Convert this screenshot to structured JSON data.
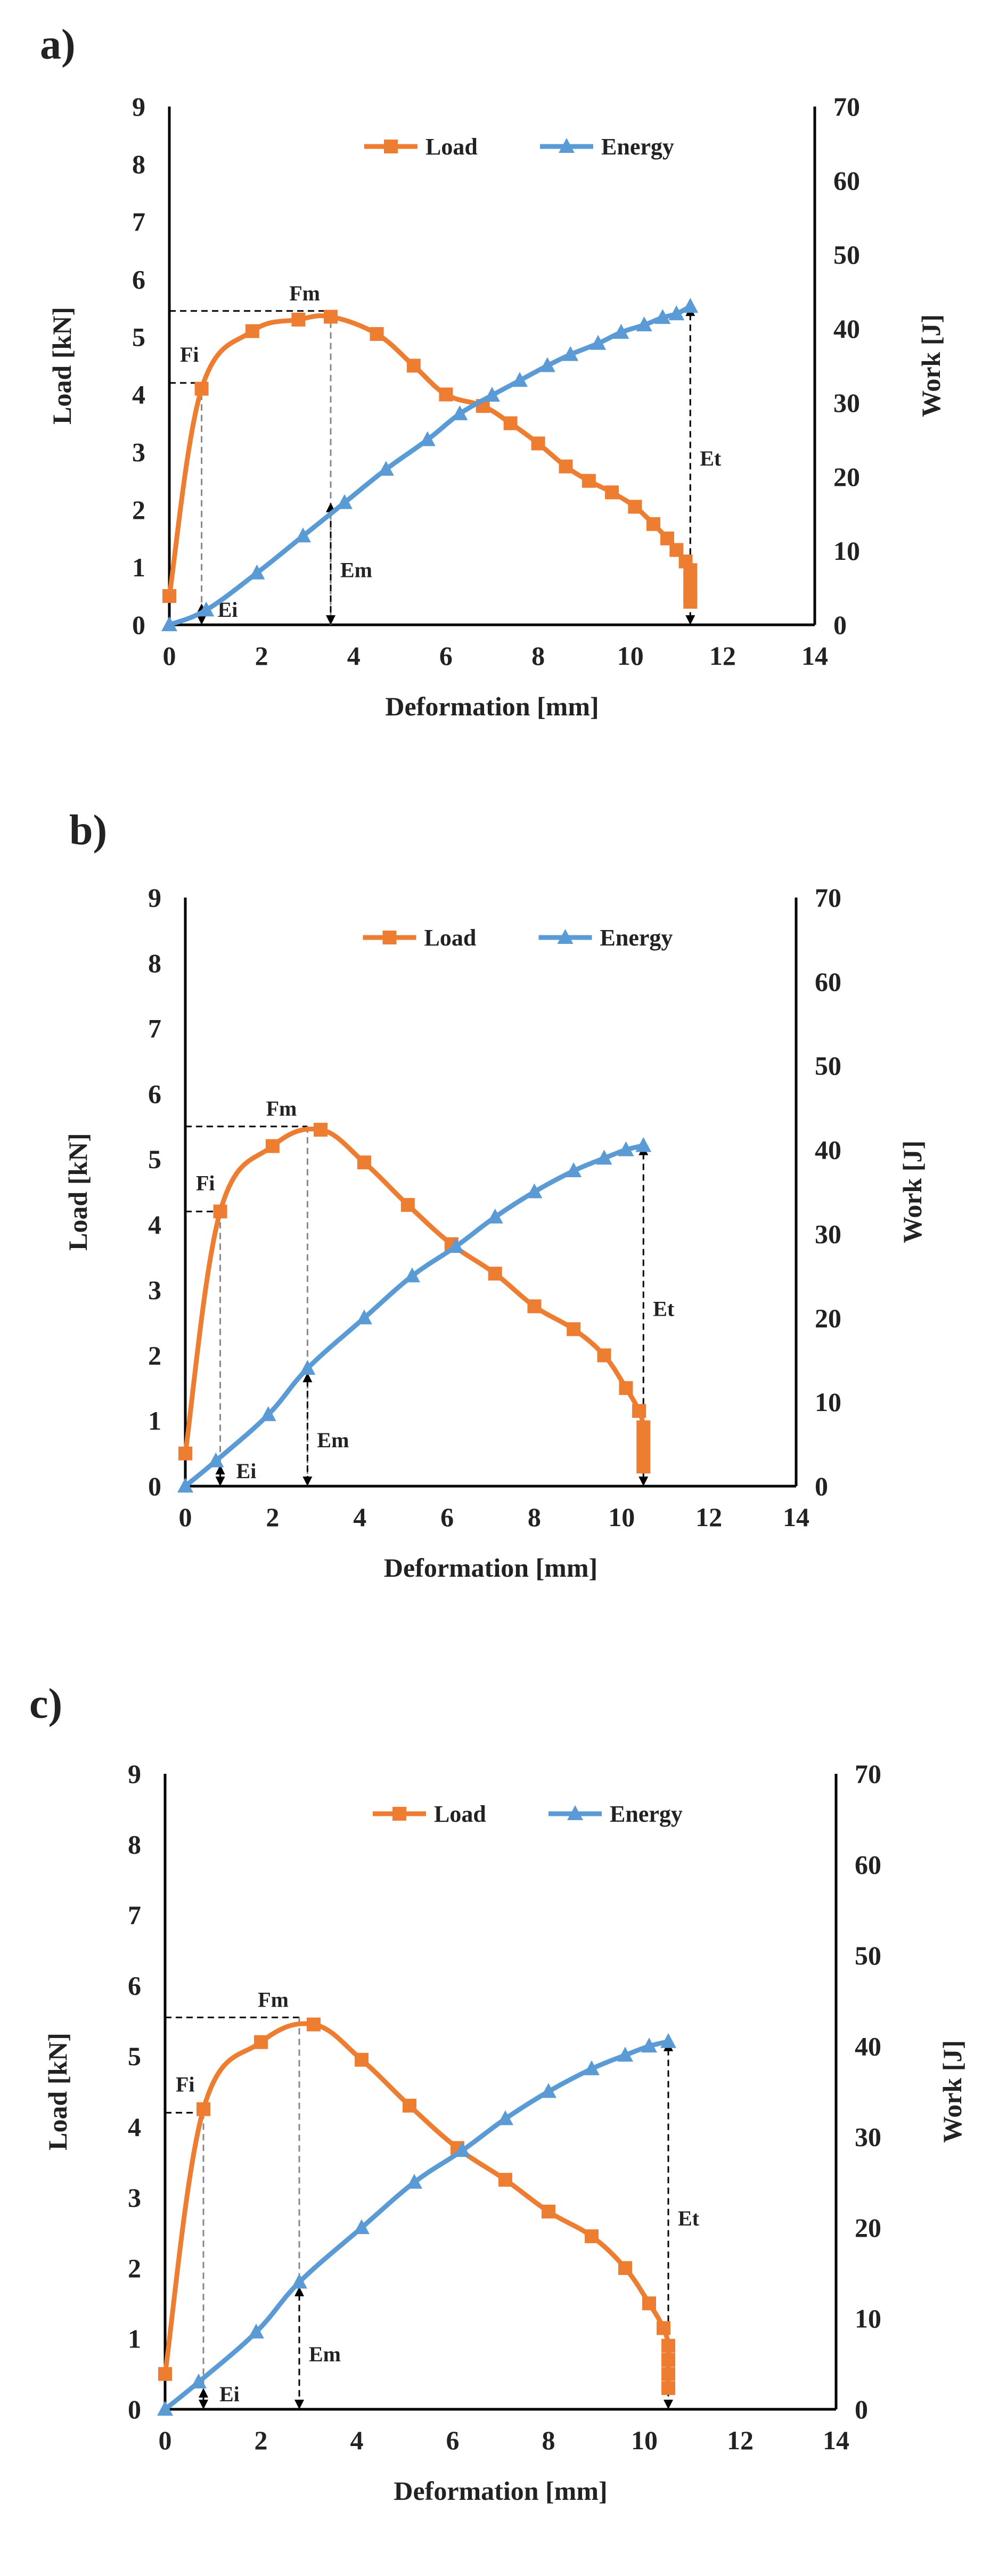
{
  "colors": {
    "load": "#ED7D31",
    "energy": "#5B9BD5",
    "axis": "#000000",
    "text": "#222222"
  },
  "chart_data": [
    {
      "panel_label": "a)",
      "type": "line",
      "xlabel": "Deformation [mm]",
      "ylabel": "Load [kN]",
      "y2label": "Work [J]",
      "xlim": [
        0,
        14
      ],
      "ylim": [
        0,
        9
      ],
      "y2lim": [
        0,
        70
      ],
      "xticks": [
        0,
        2,
        4,
        6,
        8,
        10,
        12,
        14
      ],
      "yticks": [
        0,
        1,
        2,
        3,
        4,
        5,
        6,
        7,
        8,
        9
      ],
      "y2ticks": [
        0,
        10,
        20,
        30,
        40,
        50,
        60,
        70
      ],
      "grid": false,
      "legend": "top-center",
      "series": [
        {
          "name": "Load",
          "axis": "left",
          "marker": "square",
          "x": [
            0,
            0.7,
            1.8,
            2.8,
            3.5,
            4.5,
            5.3,
            6.0,
            6.8,
            7.4,
            8.0,
            8.6,
            9.1,
            9.6,
            10.1,
            10.5,
            10.8,
            11.0,
            11.2,
            11.3,
            11.3,
            11.3,
            11.3,
            11.3
          ],
          "values": [
            0.5,
            4.1,
            5.1,
            5.3,
            5.35,
            5.05,
            4.5,
            4.0,
            3.8,
            3.5,
            3.15,
            2.75,
            2.5,
            2.3,
            2.05,
            1.75,
            1.5,
            1.3,
            1.1,
            0.95,
            0.8,
            0.65,
            0.5,
            0.4
          ]
        },
        {
          "name": "Energy",
          "axis": "right",
          "marker": "triangle",
          "x": [
            0,
            0.8,
            1.9,
            2.9,
            3.8,
            4.7,
            5.6,
            6.3,
            7.0,
            7.6,
            8.2,
            8.7,
            9.3,
            9.8,
            10.3,
            10.7,
            11.0,
            11.3
          ],
          "values": [
            0,
            2,
            7,
            12,
            16.5,
            21,
            25,
            28.5,
            31,
            33,
            35,
            36.5,
            38,
            39.5,
            40.5,
            41.5,
            42,
            43
          ]
        }
      ],
      "annotations": [
        {
          "label": "Fi",
          "x": 0.7,
          "y_load": 4.2
        },
        {
          "label": "Fm",
          "x": 3.5,
          "y_load": 5.45
        },
        {
          "label": "Ei",
          "x": 0.7
        },
        {
          "label": "Em",
          "x": 3.5,
          "y_energy": 16.5
        },
        {
          "label": "Et",
          "x": 11.3,
          "y_energy": 43
        }
      ]
    },
    {
      "panel_label": "b)",
      "type": "line",
      "xlabel": "Deformation [mm]",
      "ylabel": "Load [kN]",
      "y2label": "Work [J]",
      "xlim": [
        0,
        14
      ],
      "ylim": [
        0,
        9
      ],
      "y2lim": [
        0,
        70
      ],
      "xticks": [
        0,
        2,
        4,
        6,
        8,
        10,
        12,
        14
      ],
      "yticks": [
        0,
        1,
        2,
        3,
        4,
        5,
        6,
        7,
        8,
        9
      ],
      "y2ticks": [
        0,
        10,
        20,
        30,
        40,
        50,
        60,
        70
      ],
      "grid": false,
      "legend": "top-center",
      "series": [
        {
          "name": "Load",
          "axis": "left",
          "marker": "square",
          "x": [
            0,
            0.8,
            2.0,
            3.1,
            4.1,
            5.1,
            6.1,
            7.1,
            8.0,
            8.9,
            9.6,
            10.1,
            10.4,
            10.5,
            10.5,
            10.5,
            10.5
          ],
          "values": [
            0.5,
            4.2,
            5.2,
            5.45,
            4.95,
            4.3,
            3.7,
            3.25,
            2.75,
            2.4,
            2.0,
            1.5,
            1.15,
            0.9,
            0.7,
            0.5,
            0.3
          ]
        },
        {
          "name": "Energy",
          "axis": "right",
          "marker": "triangle",
          "x": [
            0,
            0.7,
            1.9,
            2.8,
            4.1,
            5.2,
            6.2,
            7.1,
            8.0,
            8.9,
            9.6,
            10.1,
            10.5
          ],
          "values": [
            0,
            3,
            8.5,
            14,
            20,
            25,
            28.5,
            32,
            35,
            37.5,
            39,
            40,
            40.5
          ]
        }
      ],
      "annotations": [
        {
          "label": "Fi",
          "x": 0.8,
          "y_load": 4.2
        },
        {
          "label": "Fm",
          "x": 2.8,
          "y_load": 5.5
        },
        {
          "label": "Ei",
          "x": 0.8
        },
        {
          "label": "Em",
          "x": 2.8,
          "y_energy": 13.5
        },
        {
          "label": "Et",
          "x": 10.5,
          "y_energy": 40.5
        }
      ]
    },
    {
      "panel_label": "c)",
      "type": "line",
      "xlabel": "Deformation [mm]",
      "ylabel": "Load [kN]",
      "y2label": "Work [J]",
      "xlim": [
        0,
        14
      ],
      "ylim": [
        0,
        9
      ],
      "y2lim": [
        0,
        70
      ],
      "xticks": [
        0,
        2,
        4,
        6,
        8,
        10,
        12,
        14
      ],
      "yticks": [
        0,
        1,
        2,
        3,
        4,
        5,
        6,
        7,
        8,
        9
      ],
      "y2ticks": [
        0,
        10,
        20,
        30,
        40,
        50,
        60,
        70
      ],
      "grid": false,
      "legend": "top-center",
      "series": [
        {
          "name": "Load",
          "axis": "left",
          "marker": "square",
          "x": [
            0,
            0.8,
            2.0,
            3.1,
            4.1,
            5.1,
            6.1,
            7.1,
            8.0,
            8.9,
            9.6,
            10.1,
            10.4,
            10.5,
            10.5,
            10.5,
            10.5
          ],
          "values": [
            0.5,
            4.25,
            5.2,
            5.45,
            4.95,
            4.3,
            3.7,
            3.25,
            2.8,
            2.45,
            2.0,
            1.5,
            1.15,
            0.9,
            0.7,
            0.5,
            0.3
          ]
        },
        {
          "name": "Energy",
          "axis": "right",
          "marker": "triangle",
          "x": [
            0,
            0.7,
            1.9,
            2.8,
            4.1,
            5.2,
            6.2,
            7.1,
            8.0,
            8.9,
            9.6,
            10.1,
            10.5
          ],
          "values": [
            0,
            3,
            8.5,
            14,
            20,
            25,
            28.5,
            32,
            35,
            37.5,
            39,
            40,
            40.5
          ]
        }
      ],
      "annotations": [
        {
          "label": "Fi",
          "x": 0.8,
          "y_load": 4.2
        },
        {
          "label": "Fm",
          "x": 2.8,
          "y_load": 5.55
        },
        {
          "label": "Ei",
          "x": 0.8
        },
        {
          "label": "Em",
          "x": 2.8,
          "y_energy": 13.5
        },
        {
          "label": "Et",
          "x": 10.5,
          "y_energy": 40.5
        }
      ]
    }
  ]
}
